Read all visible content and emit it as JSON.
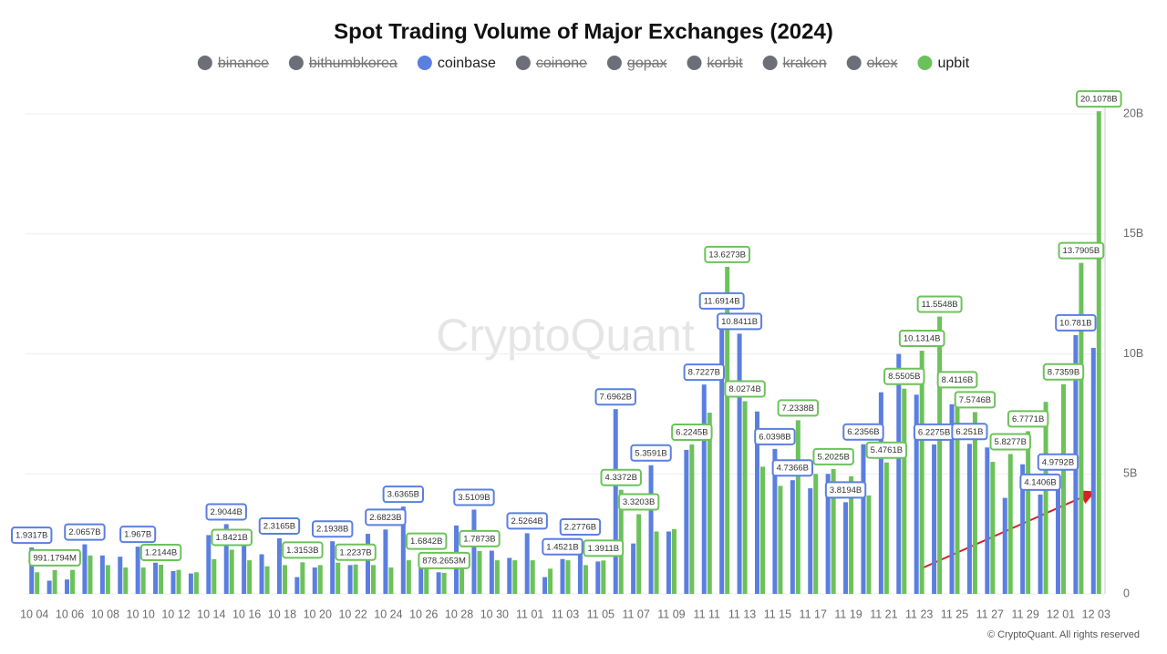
{
  "chart_data": {
    "type": "bar",
    "title": "Spot Trading Volume of Major Exchanges (2024)",
    "watermark": "CryptoQuant",
    "credit": "© CryptoQuant. All rights reserved",
    "categories": [
      "10 04",
      null,
      "10 06",
      null,
      "10 08",
      null,
      "10 10",
      null,
      "10 12",
      null,
      "10 14",
      null,
      "10 16",
      null,
      "10 18",
      null,
      "10 20",
      null,
      "10 22",
      null,
      "10 24",
      null,
      "10 26",
      null,
      "10 28",
      null,
      "10 30",
      null,
      "11 01",
      null,
      "11 03",
      null,
      "11 05",
      null,
      "11 07",
      null,
      "11 09",
      null,
      "11 11",
      null,
      "11 13",
      null,
      "11 15",
      null,
      "11 17",
      null,
      "11 19",
      null,
      "11 21",
      null,
      "11 23",
      null,
      "11 25",
      null,
      "11 27",
      null,
      "11 29",
      null,
      "12 01",
      null,
      "12 03"
    ],
    "series": [
      {
        "name": "binance",
        "color": "#6e6e78",
        "hidden": true
      },
      {
        "name": "bithumbkorea",
        "color": "#6e6e78",
        "hidden": true
      },
      {
        "name": "coinbase",
        "color": "#5b7fe0",
        "values": [
          1.9317,
          0.55,
          0.6,
          2.0657,
          1.6,
          1.55,
          1.967,
          1.3,
          0.95,
          0.85,
          2.45,
          2.9044,
          2.0,
          1.65,
          2.3165,
          0.7,
          1.1,
          2.1938,
          1.2,
          2.5,
          2.6823,
          3.6365,
          1.5,
          0.9,
          2.85,
          3.5109,
          1.8,
          1.5,
          2.5264,
          0.7,
          1.4521,
          2.2776,
          1.35,
          7.6962,
          2.1,
          5.3591,
          2.6,
          6.0,
          8.7227,
          11.6914,
          10.8411,
          7.6,
          6.0398,
          4.7366,
          4.4,
          5.0,
          3.8194,
          6.2356,
          8.4,
          10.0,
          8.3,
          6.2275,
          7.9,
          6.251,
          6.1,
          4.0,
          5.4,
          4.1406,
          4.9792,
          10.781,
          10.25
        ],
        "value_labels": [
          "1.9317B",
          null,
          null,
          "2.0657B",
          null,
          null,
          "1.967B",
          null,
          null,
          null,
          null,
          "2.9044B",
          null,
          null,
          "2.3165B",
          null,
          null,
          "2.1938B",
          null,
          null,
          "2.6823B",
          "3.6365B",
          null,
          null,
          null,
          "3.5109B",
          null,
          null,
          "2.5264B",
          null,
          "1.4521B",
          "2.2776B",
          null,
          "7.6962B",
          null,
          "5.3591B",
          null,
          null,
          "8.7227B",
          "11.6914B",
          "10.8411B",
          null,
          "6.0398B",
          "4.7366B",
          null,
          null,
          "3.8194B",
          "6.2356B",
          null,
          null,
          null,
          "6.2275B",
          null,
          "6.251B",
          null,
          null,
          null,
          "4.1406B",
          "4.9792B",
          "10.781B",
          null
        ]
      },
      {
        "name": "coinone",
        "color": "#6e6e78",
        "hidden": true
      },
      {
        "name": "gopax",
        "color": "#6e6e78",
        "hidden": true
      },
      {
        "name": "korbit",
        "color": "#6e6e78",
        "hidden": true
      },
      {
        "name": "kraken",
        "color": "#6e6e78",
        "hidden": true
      },
      {
        "name": "okex",
        "color": "#6e6e78",
        "hidden": true
      },
      {
        "name": "upbit",
        "color": "#6cc25a",
        "values": [
          0.9,
          0.9911794,
          1.0,
          1.6,
          1.2,
          1.1,
          1.1,
          1.2144,
          1.0,
          0.9,
          1.45,
          1.8421,
          1.4,
          1.15,
          1.2,
          1.3153,
          1.2,
          1.3,
          1.2237,
          1.2,
          1.1,
          1.4,
          1.6842,
          0.8782653,
          1.3,
          1.7873,
          1.4,
          1.4,
          1.4,
          1.05,
          1.4,
          1.2,
          1.3911,
          4.3372,
          3.3203,
          2.6,
          2.7,
          6.2245,
          7.55,
          13.6273,
          8.0274,
          5.3,
          4.5,
          7.2338,
          5.0,
          5.2025,
          4.9,
          4.1,
          5.4761,
          8.5505,
          10.1314,
          11.5548,
          8.4116,
          7.5746,
          5.5,
          5.8277,
          6.7771,
          8.0,
          8.7359,
          13.7905,
          20.1078
        ],
        "value_labels": [
          null,
          "991.1794M",
          null,
          null,
          null,
          null,
          null,
          "1.2144B",
          null,
          null,
          null,
          "1.8421B",
          null,
          null,
          null,
          "1.3153B",
          null,
          null,
          "1.2237B",
          null,
          null,
          null,
          "1.6842B",
          "878.2653M",
          null,
          "1.7873B",
          null,
          null,
          null,
          null,
          null,
          null,
          "1.3911B",
          "4.3372B",
          "3.3203B",
          null,
          null,
          "6.2245B",
          null,
          "13.6273B",
          "8.0274B",
          null,
          null,
          "7.2338B",
          null,
          "5.2025B",
          null,
          null,
          "5.4761B",
          "8.5505B",
          "10.1314B",
          "11.5548B",
          "8.4116B",
          "7.5746B",
          null,
          "5.8277B",
          "6.7771B",
          null,
          "8.7359B",
          "13.7905B",
          "20.1078B"
        ]
      }
    ],
    "ylim": [
      0,
      21
    ],
    "yticks": [
      0,
      {
        "value": 5,
        "label": "5B"
      },
      {
        "value": 10,
        "label": "10B"
      },
      {
        "value": 15,
        "label": "15B"
      },
      {
        "value": 20,
        "label": "20B"
      }
    ],
    "grid": true,
    "legend": "top"
  }
}
